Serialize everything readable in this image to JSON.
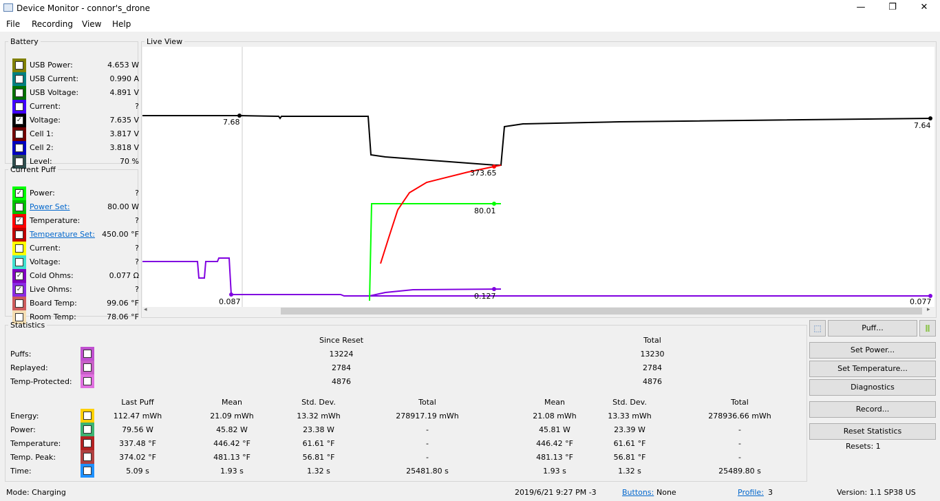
{
  "window": {
    "title": "Device Monitor - connor's_drone",
    "minimize": "—",
    "maximize": "❐",
    "close": "✕"
  },
  "menu": [
    "File",
    "Recording",
    "View",
    "Help"
  ],
  "battery": {
    "title": "Battery",
    "items": [
      {
        "label": "USB Power:",
        "value": "4.653 W",
        "color": "#808000",
        "checked": false
      },
      {
        "label": "USB Current:",
        "value": "0.990 A",
        "color": "#008080",
        "checked": false
      },
      {
        "label": "USB Voltage:",
        "value": "4.891 V",
        "color": "#007000",
        "checked": false
      },
      {
        "label": "Current:",
        "value": "?",
        "color": "#4000ff",
        "checked": false
      },
      {
        "label": "Voltage:",
        "value": "7.635 V",
        "color": "#000000",
        "checked": true
      },
      {
        "label": "Cell 1:",
        "value": "3.817 V",
        "color": "#700000",
        "checked": false
      },
      {
        "label": "Cell 2:",
        "value": "3.818 V",
        "color": "#0000c0",
        "checked": false
      },
      {
        "label": "Level:",
        "value": "70 %",
        "color": "#2f4f4f",
        "checked": false
      }
    ]
  },
  "current_puff": {
    "title": "Current Puff",
    "items": [
      {
        "label": "Power:",
        "value": "?",
        "color": "#00ff00",
        "checked": true,
        "link": false
      },
      {
        "label": "Power Set:",
        "value": "80.00 W",
        "color": "#00c000",
        "checked": false,
        "link": true
      },
      {
        "label": "Temperature:",
        "value": "?",
        "color": "#ff0000",
        "checked": true,
        "link": false
      },
      {
        "label": "Temperature Set:",
        "value": "450.00 °F",
        "color": "#c00000",
        "checked": false,
        "link": true
      },
      {
        "label": "Current:",
        "value": "?",
        "color": "#ffff00",
        "checked": false,
        "link": false
      },
      {
        "label": "Voltage:",
        "value": "?",
        "color": "#40e0d0",
        "checked": false,
        "link": false
      },
      {
        "label": "Cold Ohms:",
        "value": "0.077 Ω",
        "color": "#8000c0",
        "checked": true,
        "link": false
      },
      {
        "label": "Live Ohms:",
        "value": "?",
        "color": "#8a2be2",
        "checked": true,
        "link": false
      },
      {
        "label": "Board Temp:",
        "value": "99.06 °F",
        "color": "#cd5c5c",
        "checked": false,
        "link": false
      },
      {
        "label": "Room Temp:",
        "value": "78.06 °F",
        "color": "#f5deb3",
        "checked": false,
        "link": false
      }
    ]
  },
  "live_view": {
    "title": "Live View",
    "labels": [
      "7.68",
      "373.65",
      "80.01",
      "0.087",
      "0.127",
      "7.64",
      "0.077"
    ],
    "colors": {
      "voltage": "#000000",
      "temperature": "#ff0000",
      "power": "#00ff00",
      "ohms": "#8000e0"
    }
  },
  "statistics": {
    "title": "Statistics",
    "count_headers": [
      "Since Reset",
      "Total"
    ],
    "counts": [
      {
        "label": "Puffs:",
        "color": "#c050d0",
        "since_reset": "13224",
        "total": "13230"
      },
      {
        "label": "Replayed:",
        "color": "#c860c8",
        "since_reset": "2784",
        "total": "2784"
      },
      {
        "label": "Temp-Protected:",
        "color": "#e070e0",
        "since_reset": "4876",
        "total": "4876"
      }
    ],
    "headers": [
      "Last Puff",
      "Mean",
      "Std. Dev.",
      "Total",
      "Mean",
      "Std. Dev.",
      "Total"
    ],
    "rows": [
      {
        "label": "Energy:",
        "color": "#ffd000",
        "values": [
          "112.47 mWh",
          "21.09 mWh",
          "13.32 mWh",
          "278917.19 mWh",
          "21.08 mWh",
          "13.33 mWh",
          "278936.66 mWh"
        ]
      },
      {
        "label": "Power:",
        "color": "#3cb371",
        "values": [
          "79.56 W",
          "45.82 W",
          "23.38 W",
          "-",
          "45.81 W",
          "23.39 W",
          "-"
        ]
      },
      {
        "label": "Temperature:",
        "color": "#b22222",
        "values": [
          "337.48 °F",
          "446.42 °F",
          "61.61 °F",
          "-",
          "446.42 °F",
          "61.61 °F",
          "-"
        ]
      },
      {
        "label": "Temp. Peak:",
        "color": "#b04040",
        "values": [
          "374.02 °F",
          "481.13 °F",
          "56.81 °F",
          "-",
          "481.13 °F",
          "56.81 °F",
          "-"
        ]
      },
      {
        "label": "Time:",
        "color": "#1e90ff",
        "values": [
          "5.09 s",
          "1.93 s",
          "1.32 s",
          "25481.80 s",
          "1.93 s",
          "1.32 s",
          "25489.80 s"
        ]
      }
    ]
  },
  "buttons": {
    "puff": "Puff...",
    "set_power": "Set Power...",
    "set_temperature": "Set Temperature...",
    "diagnostics": "Diagnostics",
    "record": "Record...",
    "reset_statistics": "Reset Statistics",
    "resets": "Resets: 1"
  },
  "status": {
    "mode": "Mode: Charging",
    "datetime": "2019/6/21 9:27 PM -3",
    "buttons_label": "Buttons:",
    "buttons_value": "None",
    "profile_label": "Profile:",
    "profile_value": "3",
    "version": "Version: 1.1 SP38 US"
  }
}
